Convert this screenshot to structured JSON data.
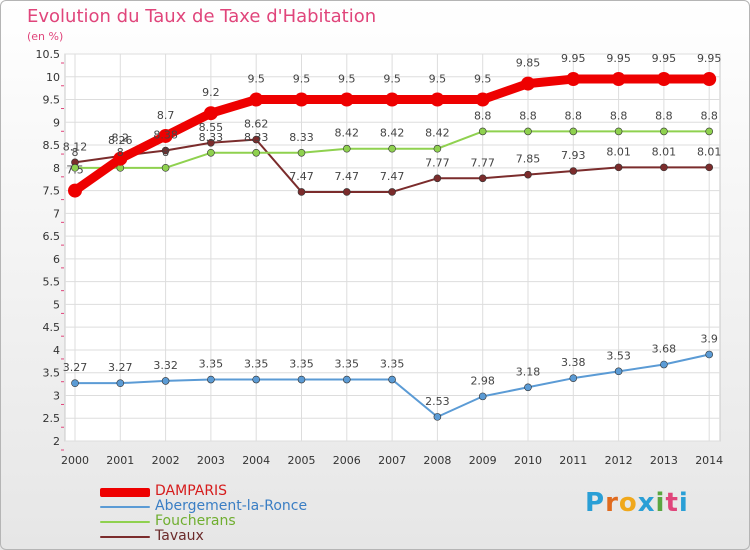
{
  "title": "Evolution du Taux de Taxe d'Habitation",
  "unit_label": "(en %)",
  "brand": {
    "text": "Proxiti",
    "colors": [
      "#2a9fd6",
      "#e06b1f",
      "#f0a81c",
      "#2a9fd6",
      "#5aa641",
      "#e0457b",
      "#2a9fd6"
    ]
  },
  "chart_data": {
    "type": "line",
    "x": [
      "2000",
      "2001",
      "2002",
      "2003",
      "2004",
      "2005",
      "2006",
      "2007",
      "2008",
      "2009",
      "2010",
      "2011",
      "2012",
      "2013",
      "2014"
    ],
    "ylim": [
      2,
      10.5
    ],
    "yticks": [
      "2",
      "2.5",
      "3",
      "3.5",
      "4",
      "4.5",
      "5",
      "5.5",
      "6",
      "6.5",
      "7",
      "7.5",
      "8",
      "8.5",
      "9",
      "9.5",
      "10",
      "10.5"
    ],
    "grid": true,
    "legend_position": "bottom-left",
    "series": [
      {
        "name": "DAMPARIS",
        "color": "#ee0000",
        "values": [
          7.5,
          8.2,
          8.7,
          9.2,
          9.5,
          9.5,
          9.5,
          9.5,
          9.5,
          9.5,
          9.85,
          9.95,
          9.95,
          9.95,
          9.95
        ],
        "labels": [
          "7.5",
          "8.2",
          "8.7",
          "9.2",
          "9.5",
          "9.5",
          "9.5",
          "9.5",
          "9.5",
          "9.5",
          "9.85",
          "9.95",
          "9.95",
          "9.95",
          "9.95"
        ]
      },
      {
        "name": "Abergement-la-Ronce",
        "color": "#5b9bd5",
        "values": [
          3.27,
          3.27,
          3.32,
          3.35,
          3.35,
          3.35,
          3.35,
          3.35,
          2.53,
          2.98,
          3.18,
          3.38,
          3.53,
          3.68,
          3.9
        ],
        "labels": [
          "3.27",
          "3.27",
          "3.32",
          "3.35",
          "3.35",
          "3.35",
          "3.35",
          "3.35",
          "2.53",
          "2.98",
          "3.18",
          "3.38",
          "3.53",
          "3.68",
          "3.9"
        ]
      },
      {
        "name": "Foucherans",
        "color": "#8fd14f",
        "values": [
          8,
          8,
          8,
          8.33,
          8.33,
          8.33,
          8.42,
          8.42,
          8.42,
          8.8,
          8.8,
          8.8,
          8.8,
          8.8,
          8.8
        ],
        "labels": [
          "8",
          "8",
          "8",
          "8.33",
          "8.33",
          "8.33",
          "8.42",
          "8.42",
          "8.42",
          "8.8",
          "8.8",
          "8.8",
          "8.8",
          "8.8",
          "8.8"
        ]
      },
      {
        "name": "Tavaux",
        "color": "#7b2c2c",
        "values": [
          8.12,
          8.26,
          8.38,
          8.55,
          8.62,
          7.47,
          7.47,
          7.47,
          7.77,
          7.77,
          7.85,
          7.93,
          8.01,
          8.01,
          8.01
        ],
        "labels": [
          "8.12",
          "8.26",
          "8.38",
          "8.55",
          "8.62",
          "7.47",
          "7.47",
          "7.47",
          "7.77",
          "7.77",
          "7.85",
          "7.93",
          "8.01",
          "8.01",
          "8.01"
        ]
      }
    ]
  }
}
